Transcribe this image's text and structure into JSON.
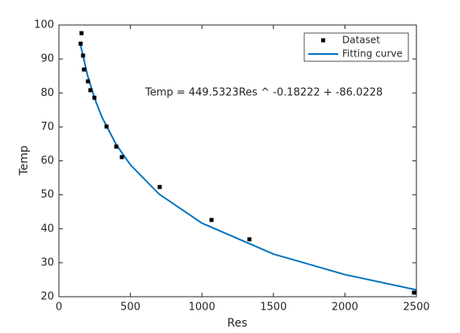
{
  "chart_data": {
    "type": "scatter",
    "xlabel": "Res",
    "ylabel": "Temp",
    "annotation": "Temp = 449.5323Res ^ -0.18222 + -86.0228",
    "xlim": [
      0,
      2500
    ],
    "xticks": [
      0,
      500,
      1000,
      1500,
      2000,
      2500
    ],
    "ylim": [
      20,
      100
    ],
    "yticks": [
      20,
      30,
      40,
      50,
      60,
      70,
      80,
      90,
      100
    ],
    "grid": false,
    "legend": "upper-right",
    "series": [
      {
        "name": "Dataset",
        "color": "#000000",
        "mode": "markers",
        "x": [
          158,
          152,
          169,
          175,
          203,
          220,
          248,
          333,
          401,
          440,
          705,
          1067,
          1332,
          2483
        ],
        "values": [
          97.6,
          94.5,
          91.0,
          86.9,
          83.4,
          80.8,
          78.6,
          70.1,
          64.2,
          61.1,
          52.3,
          42.6,
          36.9,
          21.2
        ]
      },
      {
        "name": "Fitting curve",
        "color": "#0072bd",
        "mode": "line",
        "x": [
          150,
          200,
          250,
          300,
          400,
          500,
          700,
          1000,
          1500,
          2000,
          2500
        ],
        "values": [
          94.38,
          85.17,
          78.35,
          72.97,
          64.85,
          58.84,
          50.23,
          41.66,
          32.56,
          26.51,
          22.02
        ]
      }
    ]
  }
}
